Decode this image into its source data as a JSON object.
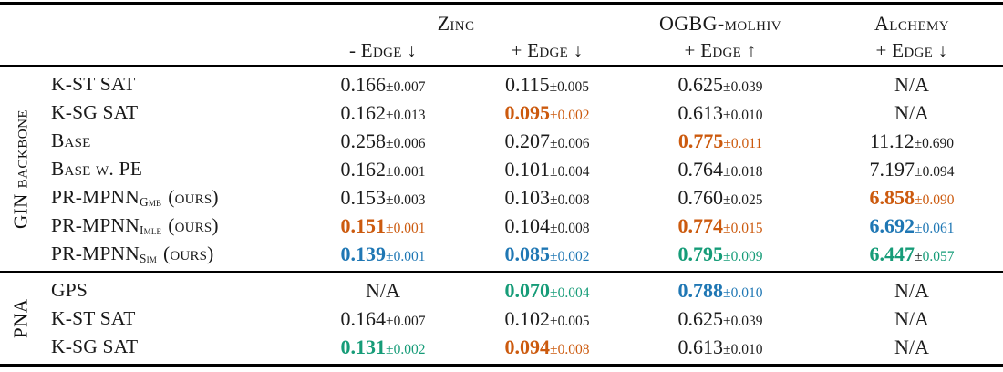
{
  "table": {
    "pm": "±",
    "colors": {
      "k": "#1c1c1c",
      "o": "#CC5A0E",
      "b": "#1F77B4",
      "g": "#169C78"
    },
    "header": {
      "zinc": "Zinc",
      "ogbg": "OGBG-molhiv",
      "alchemy": "Alchemy",
      "sub_zinc_minus": "- Edge ↓",
      "sub_zinc_plus": "+ Edge ↓",
      "sub_ogbg": "+ Edge ↑",
      "sub_alchemy": "+ Edge ↓"
    },
    "sections": [
      {
        "group": "GIN backbone",
        "rows": [
          {
            "method": {
              "name": "K-ST SAT",
              "sub": "",
              "rest": ""
            },
            "cells": [
              {
                "v": "0.166",
                "e": "0.007",
                "vc": "k",
                "ec": "k"
              },
              {
                "v": "0.115",
                "e": "0.005",
                "vc": "k",
                "ec": "k"
              },
              {
                "v": "0.625",
                "e": "0.039",
                "vc": "k",
                "ec": "k"
              },
              {
                "v": "N/A",
                "e": "",
                "vc": "k",
                "ec": "k"
              }
            ]
          },
          {
            "method": {
              "name": "K-SG SAT",
              "sub": "",
              "rest": ""
            },
            "cells": [
              {
                "v": "0.162",
                "e": "0.013",
                "vc": "k",
                "ec": "k"
              },
              {
                "v": "0.095",
                "e": "0.002",
                "vc": "o",
                "ec": "o"
              },
              {
                "v": "0.613",
                "e": "0.010",
                "vc": "k",
                "ec": "k"
              },
              {
                "v": "N/A",
                "e": "",
                "vc": "k",
                "ec": "k"
              }
            ]
          },
          {
            "method": {
              "name": "Base",
              "sub": "",
              "rest": ""
            },
            "cells": [
              {
                "v": "0.258",
                "e": "0.006",
                "vc": "k",
                "ec": "k"
              },
              {
                "v": "0.207",
                "e": "0.006",
                "vc": "k",
                "ec": "k"
              },
              {
                "v": "0.775",
                "e": "0.011",
                "vc": "o",
                "ec": "o"
              },
              {
                "v": "11.12",
                "e": "0.690",
                "vc": "k",
                "ec": "k"
              }
            ]
          },
          {
            "method": {
              "name": "Base w. PE",
              "sub": "",
              "rest": ""
            },
            "cells": [
              {
                "v": "0.162",
                "e": "0.001",
                "vc": "k",
                "ec": "k"
              },
              {
                "v": "0.101",
                "e": "0.004",
                "vc": "k",
                "ec": "k"
              },
              {
                "v": "0.764",
                "e": "0.018",
                "vc": "k",
                "ec": "k"
              },
              {
                "v": "7.197",
                "e": "0.094",
                "vc": "k",
                "ec": "k"
              }
            ]
          },
          {
            "method": {
              "name": "PR-MPNN",
              "sub": "Gmb",
              "rest": "(ours)"
            },
            "cells": [
              {
                "v": "0.153",
                "e": "0.003",
                "vc": "k",
                "ec": "k"
              },
              {
                "v": "0.103",
                "e": "0.008",
                "vc": "k",
                "ec": "k"
              },
              {
                "v": "0.760",
                "e": "0.025",
                "vc": "k",
                "ec": "k"
              },
              {
                "v": "6.858",
                "e": "0.090",
                "vc": "o",
                "ec": "o"
              }
            ]
          },
          {
            "method": {
              "name": "PR-MPNN",
              "sub": "Imle",
              "rest": "(ours)"
            },
            "cells": [
              {
                "v": "0.151",
                "e": "0.001",
                "vc": "o",
                "ec": "o"
              },
              {
                "v": "0.104",
                "e": "0.008",
                "vc": "k",
                "ec": "k"
              },
              {
                "v": "0.774",
                "e": "0.015",
                "vc": "o",
                "ec": "o"
              },
              {
                "v": "6.692",
                "e": "0.061",
                "vc": "b",
                "ec": "b"
              }
            ]
          },
          {
            "method": {
              "name": "PR-MPNN",
              "sub": "Sim",
              "rest": "(ours)"
            },
            "cells": [
              {
                "v": "0.139",
                "e": "0.001",
                "vc": "b",
                "ec": "b"
              },
              {
                "v": "0.085",
                "e": "0.002",
                "vc": "b",
                "ec": "b"
              },
              {
                "v": "0.795",
                "e": "0.009",
                "vc": "g",
                "ec": "g"
              },
              {
                "v": "6.447",
                "e": "0.057",
                "vc": "g",
                "ec": "g",
                "pmc": "k"
              }
            ]
          }
        ]
      },
      {
        "group": "PNA",
        "rows": [
          {
            "method": {
              "name": "GPS",
              "sub": "",
              "rest": ""
            },
            "cells": [
              {
                "v": "N/A",
                "e": "",
                "vc": "k",
                "ec": "k"
              },
              {
                "v": "0.070",
                "e": "0.004",
                "vc": "g",
                "ec": "g"
              },
              {
                "v": "0.788",
                "e": "0.010",
                "vc": "b",
                "ec": "b"
              },
              {
                "v": "N/A",
                "e": "",
                "vc": "k",
                "ec": "k"
              }
            ]
          },
          {
            "method": {
              "name": "K-ST SAT",
              "sub": "",
              "rest": ""
            },
            "cells": [
              {
                "v": "0.164",
                "e": "0.007",
                "vc": "k",
                "ec": "k"
              },
              {
                "v": "0.102",
                "e": "0.005",
                "vc": "k",
                "ec": "k"
              },
              {
                "v": "0.625",
                "e": "0.039",
                "vc": "k",
                "ec": "k"
              },
              {
                "v": "N/A",
                "e": "",
                "vc": "k",
                "ec": "k"
              }
            ]
          },
          {
            "method": {
              "name": "K-SG SAT",
              "sub": "",
              "rest": ""
            },
            "cells": [
              {
                "v": "0.131",
                "e": "0.002",
                "vc": "g",
                "ec": "g"
              },
              {
                "v": "0.094",
                "e": "0.008",
                "vc": "o",
                "ec": "o"
              },
              {
                "v": "0.613",
                "e": "0.010",
                "vc": "k",
                "ec": "k"
              },
              {
                "v": "N/A",
                "e": "",
                "vc": "k",
                "ec": "k"
              }
            ]
          }
        ]
      }
    ]
  }
}
